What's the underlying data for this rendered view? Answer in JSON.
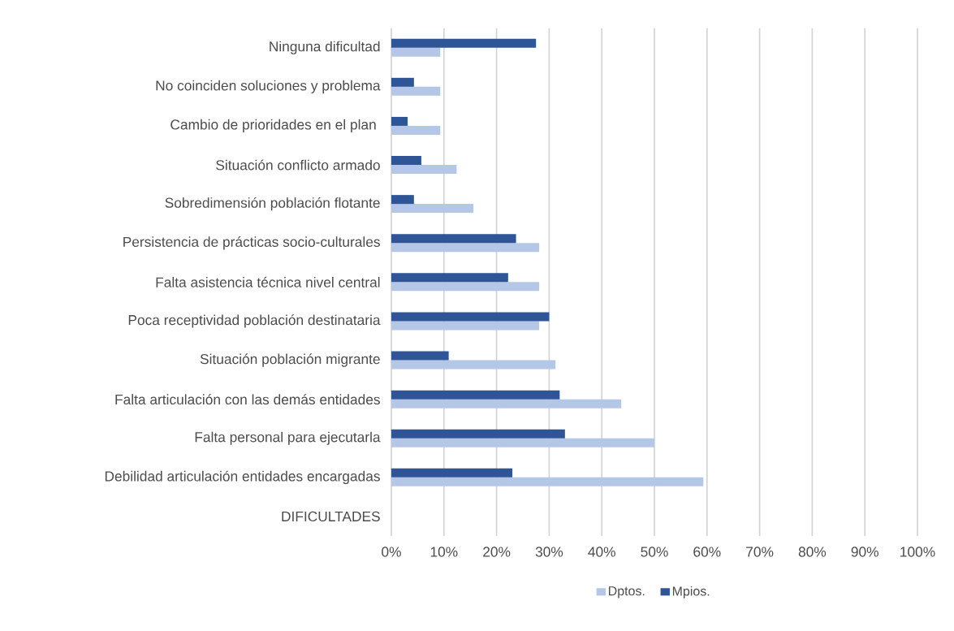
{
  "chart_data": {
    "type": "bar",
    "orientation": "horizontal",
    "categories": [
      "Ninguna dificultad",
      "No coinciden soluciones y problema",
      "Cambio de prioridades en el plan ",
      "Situación conflicto armado",
      "Sobredimensión población flotante",
      "Persistencia de prácticas socio-culturales",
      "Falta asistencia técnica nivel central",
      "Poca receptividad población destinataria",
      "Situación población migrante",
      "Falta articulación con las demás entidades",
      "Falta personal para ejecutarla",
      "Debilidad articulación entidades encargadas",
      "DIFICULTADES"
    ],
    "series": [
      {
        "name": "Dptos.",
        "color": "#b4c7e7",
        "values": [
          9.3,
          9.3,
          9.3,
          12.4,
          15.6,
          28.1,
          28.1,
          28.1,
          31.2,
          43.7,
          50,
          59.3,
          null
        ]
      },
      {
        "name": "Mpios.",
        "color": "#2f5597",
        "values": [
          27.5,
          4.3,
          3.1,
          5.7,
          4.3,
          23.7,
          22.2,
          30,
          10.9,
          32,
          33,
          23,
          null
        ]
      }
    ],
    "xlim": [
      0,
      100
    ],
    "xticks": [
      {
        "value": 0,
        "label": "0%"
      },
      {
        "value": 10,
        "label": "10%"
      },
      {
        "value": 20,
        "label": "20%"
      },
      {
        "value": 30,
        "label": "30%"
      },
      {
        "value": 40,
        "label": "40%"
      },
      {
        "value": 50,
        "label": "50%"
      },
      {
        "value": 60,
        "label": "60%"
      },
      {
        "value": 70,
        "label": "70%"
      },
      {
        "value": 80,
        "label": "80%"
      },
      {
        "value": 90,
        "label": "90%"
      },
      {
        "value": 100,
        "label": "100%"
      }
    ],
    "grid": "x",
    "legend": "bottom"
  }
}
